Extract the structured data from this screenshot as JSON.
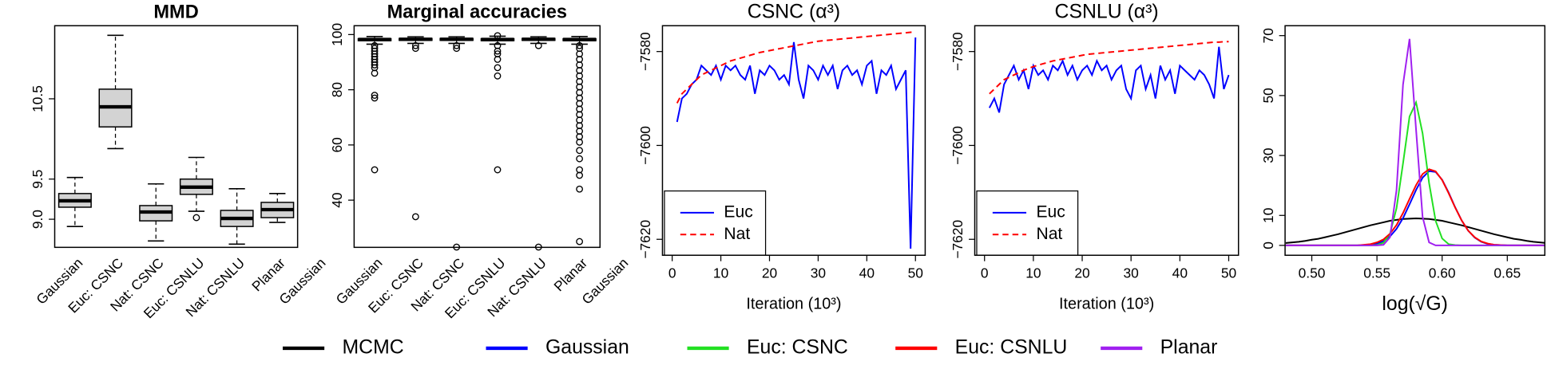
{
  "chart_data": [
    {
      "type": "box",
      "title": "MMD",
      "categories": [
        "Gaussian",
        "Euc: CSNC",
        "Nat: CSNC",
        "Euc: CSNLU",
        "Nat: CSNLU",
        "Planar",
        "Gaussian"
      ],
      "whisker_low": [
        8.91,
        9.88,
        8.73,
        9.1,
        8.69,
        8.96,
        null
      ],
      "q1": [
        9.15,
        10.15,
        8.98,
        9.31,
        8.91,
        9.02,
        null
      ],
      "median": [
        9.23,
        10.4,
        9.09,
        9.4,
        9.01,
        9.12,
        null
      ],
      "q3": [
        9.32,
        10.62,
        9.17,
        9.5,
        9.11,
        9.21,
        null
      ],
      "whisker_high": [
        9.52,
        11.29,
        9.44,
        9.77,
        9.38,
        9.32,
        null
      ],
      "outliers": [
        [],
        [],
        [],
        [
          9.02
        ],
        [],
        [],
        null
      ],
      "color": "#d3d3d3",
      "ylim": [
        8.65,
        11.41
      ],
      "yticks": [
        {
          "value": 9,
          "label": "9.0"
        },
        9.5,
        10.5
      ]
    },
    {
      "type": "box",
      "title": "Marginal accuracies",
      "categories": [
        "Gaussian",
        "Euc: CSNC",
        "Nat: CSNC",
        "Euc: CSNLU",
        "Nat: CSNLU",
        "Planar",
        "Gaussian"
      ],
      "whisker_low": [
        96.5,
        96.8,
        96.8,
        96.5,
        96.8,
        96.5,
        null
      ],
      "q1": [
        97.8,
        97.9,
        97.9,
        97.8,
        97.9,
        97.8,
        null
      ],
      "median": [
        98.2,
        98.3,
        98.3,
        98.2,
        98.3,
        98.2,
        null
      ],
      "q3": [
        98.5,
        98.6,
        98.6,
        98.5,
        98.6,
        98.5,
        null
      ],
      "whisker_high": [
        99.3,
        99.2,
        99.2,
        99.4,
        99.2,
        99.3,
        null
      ],
      "outliers": [
        [
          96,
          95,
          94,
          93,
          92,
          91,
          90,
          89,
          88,
          86,
          78,
          77,
          51
        ],
        [
          96,
          95,
          34
        ],
        [
          96,
          95,
          23
        ],
        [
          99.6,
          96,
          94,
          93,
          91,
          88,
          85,
          51
        ],
        [
          96,
          23
        ],
        [
          96,
          95,
          93,
          91,
          89,
          87,
          85,
          83,
          81,
          79,
          77,
          75,
          73,
          71,
          69,
          67,
          65,
          63,
          61,
          58,
          55,
          51,
          49,
          44,
          25
        ],
        null
      ],
      "color": "#d3d3d3",
      "ylim": [
        22.9,
        103.2
      ],
      "yticks": [
        40,
        60,
        80,
        100
      ]
    },
    {
      "type": "line",
      "title": "CSNC (α³)",
      "x_label": "Iteration (10³)",
      "x": [
        1,
        2,
        3,
        4,
        5,
        6,
        7,
        8,
        9,
        10,
        11,
        12,
        13,
        14,
        15,
        16,
        17,
        18,
        19,
        20,
        21,
        22,
        23,
        24,
        25,
        26,
        27,
        28,
        29,
        30,
        31,
        32,
        33,
        34,
        35,
        36,
        37,
        38,
        39,
        40,
        41,
        42,
        43,
        44,
        45,
        46,
        47,
        48,
        49,
        50
      ],
      "series": [
        {
          "name": "Euc",
          "color": "#0000ff",
          "dashed": false,
          "values": [
            -7595,
            -7590,
            -7589,
            -7587,
            -7586,
            -7583,
            -7584,
            -7585,
            -7583,
            -7586,
            -7583,
            -7584,
            -7583,
            -7585,
            -7586,
            -7583,
            -7589,
            -7584,
            -7585,
            -7583,
            -7584,
            -7586,
            -7585,
            -7587,
            -7578,
            -7586,
            -7590,
            -7583,
            -7584,
            -7586,
            -7583,
            -7585,
            -7583,
            -7588,
            -7584,
            -7583,
            -7585,
            -7584,
            -7587,
            -7583,
            -7582,
            -7589,
            -7584,
            -7585,
            -7583,
            -7588,
            -7586,
            -7584,
            -7622,
            -7577
          ]
        },
        {
          "name": "Nat",
          "color": "#ff0000",
          "dashed": true,
          "values": [
            -7591,
            -7589,
            -7588,
            -7587,
            -7586,
            -7585,
            -7584.5,
            -7584,
            -7583.5,
            -7583,
            -7582.5,
            -7582,
            -7581.7,
            -7581.4,
            -7581.1,
            -7580.8,
            -7580.5,
            -7580.2,
            -7580,
            -7579.8,
            -7579.6,
            -7579.4,
            -7579.2,
            -7579,
            -7578.8,
            -7578.6,
            -7578.4,
            -7578.2,
            -7578,
            -7577.8,
            -7577.7,
            -7577.6,
            -7577.5,
            -7577.4,
            -7577.3,
            -7577.2,
            -7577.1,
            -7577,
            -7576.9,
            -7576.8,
            -7576.7,
            -7576.6,
            -7576.5,
            -7576.4,
            -7576.3,
            -7576.2,
            -7576.1,
            -7576,
            -7575.9,
            -7575.8
          ]
        }
      ],
      "xlim": [
        -2,
        52
      ],
      "xticks": [
        0,
        10,
        20,
        30,
        40,
        50
      ],
      "ylim": [
        -7623.4,
        -7574.5
      ],
      "yticks": [
        {
          "value": -7580,
          "label": "−7580"
        },
        {
          "value": -7600,
          "label": "−7600"
        },
        {
          "value": -7620,
          "label": "−7620"
        }
      ],
      "legend": "bottomleft"
    },
    {
      "type": "line",
      "title": "CSNLU (α³)",
      "x_label": "Iteration (10³)",
      "x": [
        1,
        2,
        3,
        4,
        5,
        6,
        7,
        8,
        9,
        10,
        11,
        12,
        13,
        14,
        15,
        16,
        17,
        18,
        19,
        20,
        21,
        22,
        23,
        24,
        25,
        26,
        27,
        28,
        29,
        30,
        31,
        32,
        33,
        34,
        35,
        36,
        37,
        38,
        39,
        40,
        41,
        42,
        43,
        44,
        45,
        46,
        47,
        48,
        49,
        50
      ],
      "series": [
        {
          "name": "Euc",
          "color": "#0000ff",
          "dashed": false,
          "values": [
            -7592,
            -7590,
            -7593,
            -7587,
            -7585,
            -7583,
            -7586,
            -7584,
            -7588,
            -7583,
            -7585,
            -7584,
            -7586,
            -7583,
            -7584,
            -7582,
            -7585,
            -7583,
            -7586,
            -7584,
            -7583,
            -7585,
            -7582,
            -7584,
            -7583,
            -7586,
            -7584,
            -7583,
            -7588,
            -7590,
            -7584,
            -7583,
            -7588,
            -7585,
            -7590,
            -7583,
            -7586,
            -7584,
            -7589,
            -7583,
            -7584,
            -7585,
            -7586,
            -7584,
            -7585,
            -7587,
            -7590,
            -7579,
            -7588,
            -7585
          ]
        },
        {
          "name": "Nat",
          "color": "#ff0000",
          "dashed": true,
          "values": [
            -7589,
            -7588,
            -7587,
            -7586,
            -7585.5,
            -7585,
            -7584.5,
            -7584,
            -7583.6,
            -7583.2,
            -7582.9,
            -7582.6,
            -7582.3,
            -7582,
            -7581.8,
            -7581.6,
            -7581.4,
            -7581.2,
            -7581,
            -7580.8,
            -7580.6,
            -7580.5,
            -7580.4,
            -7580.3,
            -7580.2,
            -7580.1,
            -7580,
            -7579.9,
            -7579.8,
            -7579.7,
            -7579.6,
            -7579.5,
            -7579.4,
            -7579.3,
            -7579.2,
            -7579.1,
            -7579,
            -7578.9,
            -7578.8,
            -7578.7,
            -7578.6,
            -7578.5,
            -7578.4,
            -7578.3,
            -7578.2,
            -7578.1,
            -7578,
            -7578,
            -7577.9,
            -7577.9
          ]
        }
      ],
      "xlim": [
        -2,
        52
      ],
      "xticks": [
        0,
        10,
        20,
        30,
        40,
        50
      ],
      "ylim": [
        -7623.4,
        -7574.5
      ],
      "yticks": [
        {
          "value": -7580,
          "label": "−7580"
        },
        {
          "value": -7600,
          "label": "−7600"
        },
        {
          "value": -7620,
          "label": "−7620"
        }
      ],
      "legend": "bottomleft"
    },
    {
      "type": "line",
      "x_label": "log(√G)",
      "x": [
        0.48,
        0.485,
        0.49,
        0.495,
        0.5,
        0.505,
        0.51,
        0.515,
        0.52,
        0.525,
        0.53,
        0.535,
        0.54,
        0.545,
        0.55,
        0.555,
        0.56,
        0.565,
        0.57,
        0.575,
        0.58,
        0.585,
        0.59,
        0.595,
        0.6,
        0.605,
        0.61,
        0.615,
        0.62,
        0.625,
        0.63,
        0.635,
        0.64,
        0.645,
        0.65,
        0.655,
        0.66,
        0.665,
        0.67,
        0.675,
        0.68
      ],
      "series": [
        {
          "name": "MCMC",
          "color": "#000000",
          "dashed": false,
          "values": [
            0.8,
            1.0,
            1.2,
            1.5,
            1.9,
            2.2,
            2.7,
            3.2,
            3.7,
            4.3,
            4.9,
            5.5,
            6.1,
            6.7,
            7.2,
            7.7,
            8.2,
            8.5,
            8.8,
            8.9,
            9.0,
            8.9,
            8.8,
            8.5,
            8.2,
            7.7,
            7.2,
            6.7,
            6.1,
            5.5,
            4.9,
            4.3,
            3.7,
            3.2,
            2.7,
            2.2,
            1.9,
            1.5,
            1.2,
            1.0,
            0.8
          ]
        },
        {
          "name": "Gaussian",
          "color": "#0000ff",
          "dashed": false,
          "values": [
            0,
            0,
            0,
            0,
            0,
            0,
            0,
            0,
            0,
            0,
            0,
            0,
            0.1,
            0.3,
            0.6,
            1.4,
            3.0,
            5.5,
            9.1,
            13.7,
            18.5,
            22.6,
            24.8,
            24.5,
            21.9,
            17.6,
            12.7,
            8.3,
            4.9,
            2.6,
            1.2,
            0.5,
            0.2,
            0.1,
            0,
            0,
            0,
            0,
            0,
            0,
            0
          ]
        },
        {
          "name": "Euc: CSNC",
          "color": "#22e022",
          "dashed": false,
          "values": [
            0,
            0,
            0,
            0,
            0,
            0,
            0,
            0,
            0,
            0,
            0,
            0,
            0,
            0,
            0.1,
            0.9,
            3.9,
            12.4,
            27.4,
            43.0,
            47.7,
            37.4,
            20.8,
            8.2,
            2.3,
            0.4,
            0.1,
            0,
            0,
            0,
            0,
            0,
            0,
            0,
            0,
            0,
            0,
            0,
            0,
            0,
            0
          ]
        },
        {
          "name": "Euc: CSNLU",
          "color": "#ff0000",
          "dashed": false,
          "values": [
            0,
            0,
            0,
            0,
            0,
            0,
            0,
            0,
            0,
            0,
            0,
            0,
            0.2,
            0.4,
            1.0,
            2.0,
            3.9,
            6.8,
            10.8,
            15.5,
            20.1,
            23.8,
            25.4,
            24.7,
            21.8,
            17.4,
            12.6,
            8.3,
            4.9,
            2.7,
            1.3,
            0.6,
            0.2,
            0.1,
            0,
            0,
            0,
            0,
            0,
            0,
            0
          ]
        },
        {
          "name": "Planar",
          "color": "#a020f0",
          "dashed": false,
          "values": [
            0,
            0,
            0,
            0,
            0,
            0,
            0,
            0,
            0,
            0,
            0,
            0,
            0,
            0,
            0,
            0.2,
            2.7,
            18.4,
            53.7,
            68.9,
            38.6,
            9.5,
            1.0,
            0,
            0,
            0,
            0,
            0,
            0,
            0,
            0,
            0,
            0,
            0,
            0,
            0,
            0,
            0,
            0,
            0,
            0
          ]
        }
      ],
      "xlim": [
        0.4795,
        0.6788
      ],
      "xticks": [
        {
          "value": 0.5,
          "label": "0.50"
        },
        0.55,
        {
          "value": 0.6,
          "label": "0.60"
        },
        0.65
      ],
      "ylim": [
        -3.3,
        73.3
      ],
      "yticks": [
        0,
        10,
        30,
        50,
        70
      ],
      "legend": "bottom"
    }
  ]
}
